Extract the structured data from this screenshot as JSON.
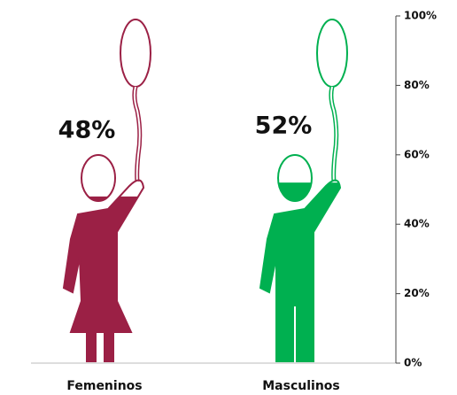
{
  "chart_data": {
    "type": "pictograph",
    "categories": [
      "Femeninos",
      "Masculinos"
    ],
    "values": [
      48,
      52
    ],
    "value_labels": [
      "48%",
      "52%"
    ],
    "colors": [
      "#9b2045",
      "#00b050"
    ],
    "ylim": [
      0,
      100
    ],
    "yticks": [
      {
        "value": 0,
        "label": "0%"
      },
      {
        "value": 20,
        "label": "20%"
      },
      {
        "value": 40,
        "label": "40%"
      },
      {
        "value": 60,
        "label": "60%"
      },
      {
        "value": 80,
        "label": "80%"
      },
      {
        "value": 100,
        "label": "100%"
      }
    ]
  }
}
